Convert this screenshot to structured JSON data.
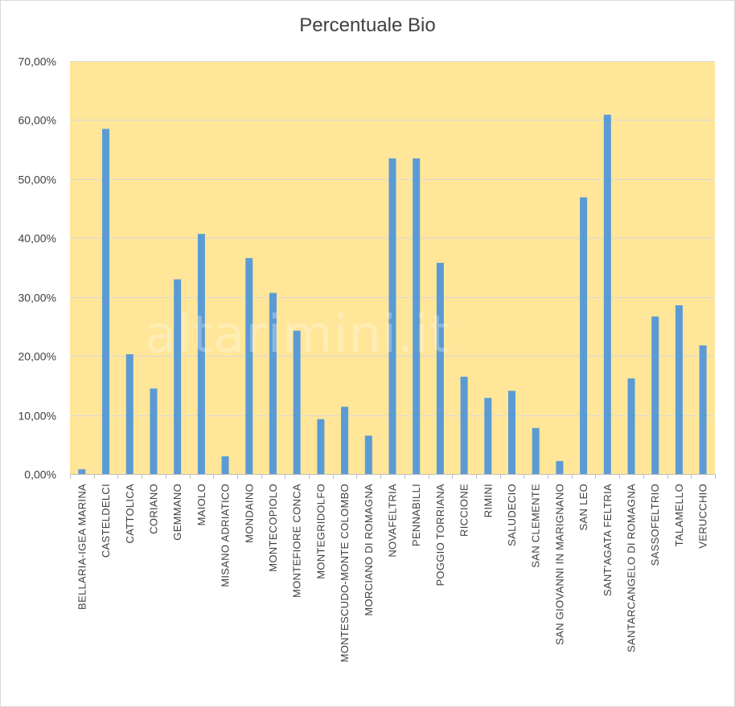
{
  "chart_data": {
    "type": "bar",
    "title": "Percentuale Bio",
    "xlabel": "",
    "ylabel": "",
    "ylim": [
      0,
      70
    ],
    "yticks": [
      "0,00%",
      "10,00%",
      "20,00%",
      "30,00%",
      "40,00%",
      "50,00%",
      "60,00%",
      "70,00%"
    ],
    "grid": true,
    "legend": "none",
    "categories": [
      "BELLARIA-IGEA MARINA",
      "CASTELDELCI",
      "CATTOLICA",
      "CORIANO",
      "GEMMANO",
      "MAIOLO",
      "MISANO ADRIATICO",
      "MONDAINO",
      "MONTECOPIOLO",
      "MONTEFIORE CONCA",
      "MONTEGRIDOLFO",
      "MONTESCUDO-MONTE COLOMBO",
      "MORCIANO DI ROMAGNA",
      "NOVAFELTRIA",
      "PENNABILLI",
      "POGGIO TORRIANA",
      "RICCIONE",
      "RIMINI",
      "SALUDECIO",
      "SAN CLEMENTE",
      "SAN GIOVANNI IN MARIGNANO",
      "SAN LEO",
      "SANT'AGATA FELTRIA",
      "SANTARCANGELO DI ROMAGNA",
      "SASSOFELTRIO",
      "TALAMELLO",
      "VERUCCHIO"
    ],
    "values": [
      0.8,
      58.5,
      20.3,
      14.5,
      33.0,
      40.7,
      3.0,
      36.6,
      30.7,
      24.3,
      9.3,
      11.4,
      6.5,
      53.5,
      53.5,
      35.8,
      16.5,
      12.9,
      14.1,
      7.8,
      2.2,
      46.9,
      60.9,
      16.2,
      26.7,
      28.6,
      21.8
    ],
    "colors": {
      "bar": "#5b9bd5",
      "plot_background": "#ffe699",
      "grid": "#d9d9d9"
    }
  },
  "watermark": "altarimini.it"
}
